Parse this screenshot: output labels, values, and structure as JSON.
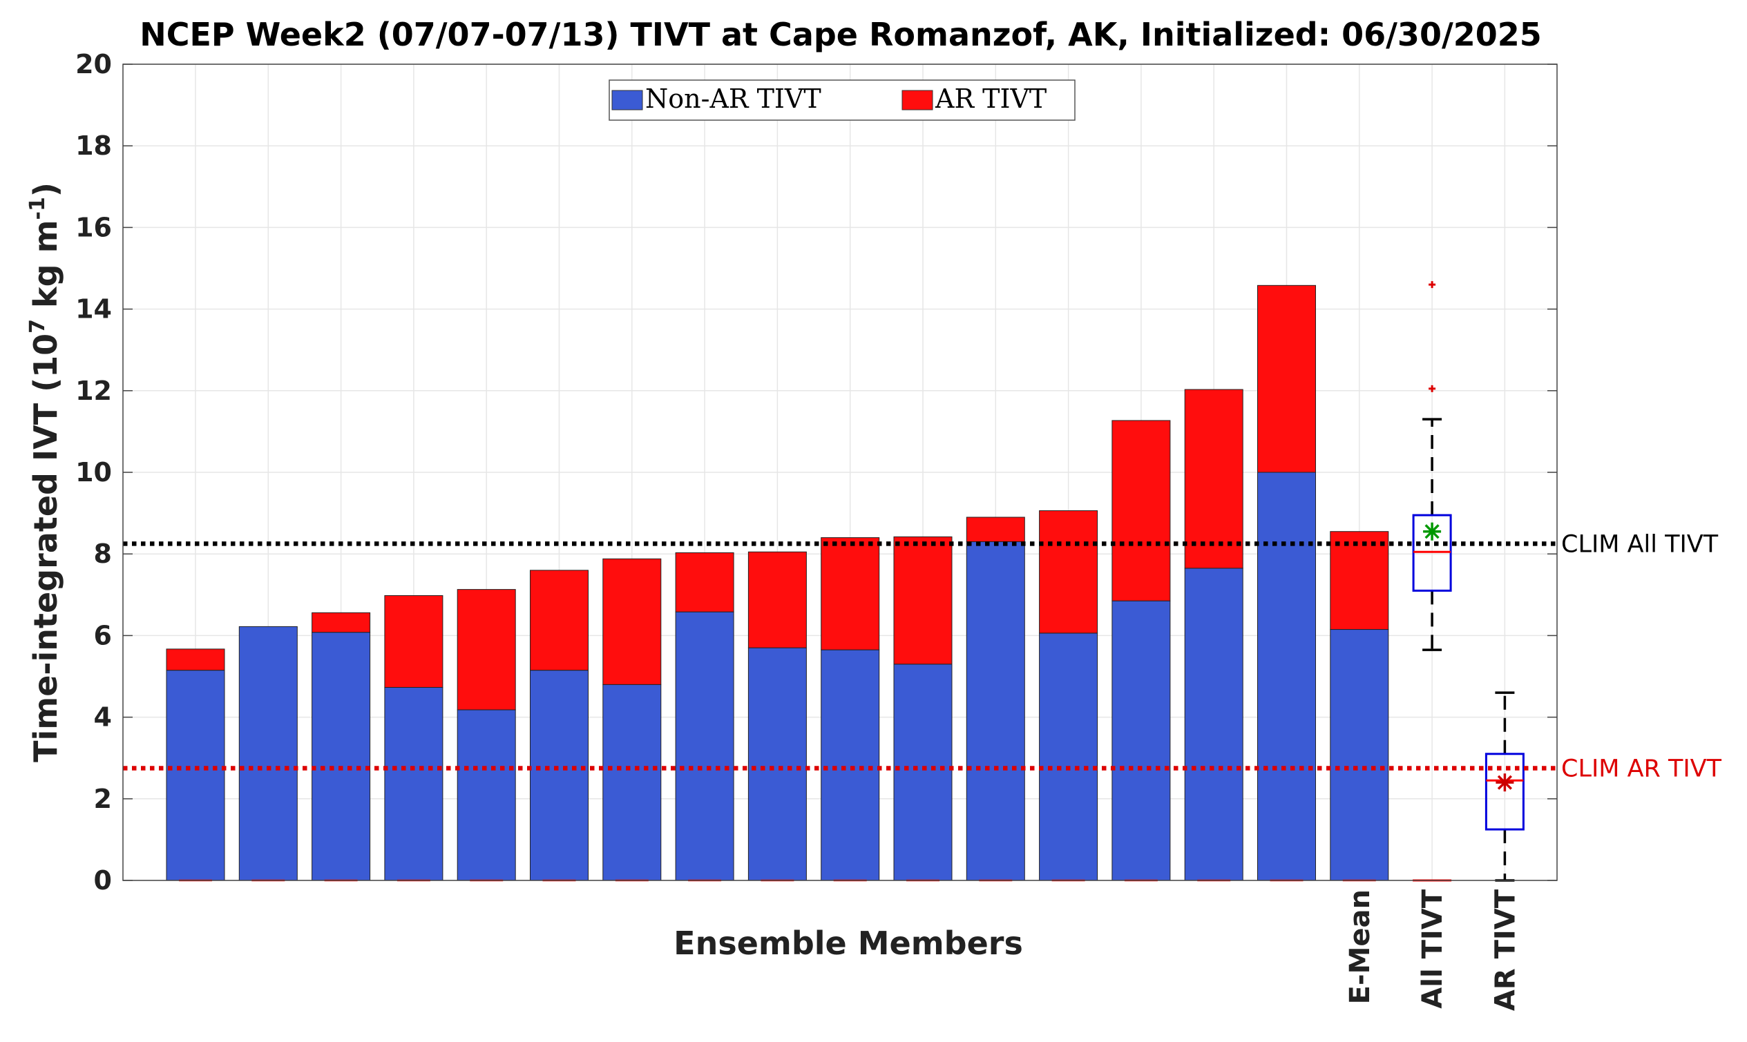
{
  "chart_data": {
    "type": "bar",
    "stacked": true,
    "title": "NCEP Week2 (07/07-07/13) TIVT at Cape Romanzof, AK, Initialized: 06/30/2025",
    "xlabel": "Ensemble Members",
    "ylabel": "Time-integrated IVT (10",
    "ylabel_exponent": "7",
    "ylabel_units": " kg m",
    "ylabel_units_exponent": "-1",
    "ylabel_close": ")",
    "ylim": [
      0,
      20
    ],
    "yticks": [
      0,
      2,
      4,
      6,
      8,
      10,
      12,
      14,
      16,
      18,
      20
    ],
    "grid": true,
    "legend_position": "top-center",
    "categories": [
      "",
      "",
      "",
      "",
      "",
      "",
      "",
      "",
      "",
      "",
      "",
      "",
      "",
      "",
      "",
      "",
      "E-Mean"
    ],
    "series": [
      {
        "name": "Non-AR TIVT",
        "color": "#3b5bd4",
        "values": [
          5.15,
          6.22,
          6.08,
          4.73,
          4.18,
          5.15,
          4.8,
          6.58,
          5.7,
          5.65,
          5.3,
          8.3,
          6.06,
          6.85,
          7.65,
          10.0,
          6.15
        ]
      },
      {
        "name": "AR TIVT",
        "color": "#ff0d0d",
        "values": [
          0.52,
          0.0,
          0.48,
          2.25,
          2.95,
          2.45,
          3.08,
          1.45,
          2.35,
          2.75,
          3.12,
          0.6,
          3.0,
          4.42,
          4.38,
          4.58,
          2.4
        ]
      }
    ],
    "boxplots": [
      {
        "label": "All TIVT",
        "box_color": "#0000dd",
        "q1": 7.1,
        "median": 8.05,
        "q3": 8.95,
        "whisker_low": 5.65,
        "whisker_high": 11.3,
        "mean": 8.55,
        "mean_color": "#009900",
        "outliers": [
          12.05,
          14.6
        ],
        "outlier_color": "#dd0000"
      },
      {
        "label": "AR TIVT",
        "box_color": "#0000dd",
        "q1": 1.25,
        "median": 2.45,
        "q3": 3.1,
        "whisker_low": 0.0,
        "whisker_high": 4.6,
        "mean": 2.4,
        "mean_color": "#cc0000",
        "outliers": []
      }
    ],
    "reference_lines": [
      {
        "label": "CLIM All TIVT",
        "value": 8.25,
        "color": "#000000"
      },
      {
        "label": "CLIM AR TIVT",
        "value": 2.75,
        "color": "#dd0000"
      }
    ]
  }
}
